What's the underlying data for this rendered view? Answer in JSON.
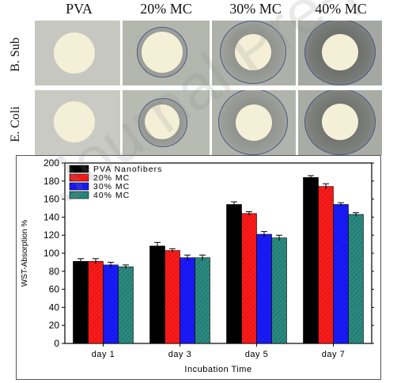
{
  "photo_panel": {
    "columns": [
      "PVA",
      "20% MC",
      "30% MC",
      "40% MC"
    ],
    "rows": [
      "B. Sub",
      "E. Coli"
    ]
  },
  "chart_data": {
    "type": "bar",
    "categories": [
      "day 1",
      "day 3",
      "day 5",
      "day 7"
    ],
    "series": [
      {
        "name": "PVA Nanofibers",
        "values": [
          91,
          108,
          154,
          184
        ],
        "errors": [
          3,
          4,
          3,
          2
        ],
        "color": "#000000"
      },
      {
        "name": "20% MC",
        "values": [
          91,
          103,
          144,
          174
        ],
        "errors": [
          3,
          2,
          2,
          3
        ],
        "color": "#ff1a1a"
      },
      {
        "name": "30% MC",
        "values": [
          87,
          95,
          121,
          154
        ],
        "errors": [
          3,
          3,
          3,
          2
        ],
        "color": "#1a1aff"
      },
      {
        "name": "40% MC",
        "values": [
          85,
          95,
          117,
          143
        ],
        "errors": [
          2,
          3,
          3,
          2
        ],
        "color": "#2a8a80"
      }
    ],
    "xlabel": "Incubation Time",
    "ylabel": "WST-Absorption %",
    "ylim": [
      0,
      200
    ],
    "yticks": [
      "0",
      "20",
      "40",
      "60",
      "80",
      "100",
      "120",
      "140",
      "160",
      "180",
      "200"
    ],
    "legend_position": "top-left"
  }
}
